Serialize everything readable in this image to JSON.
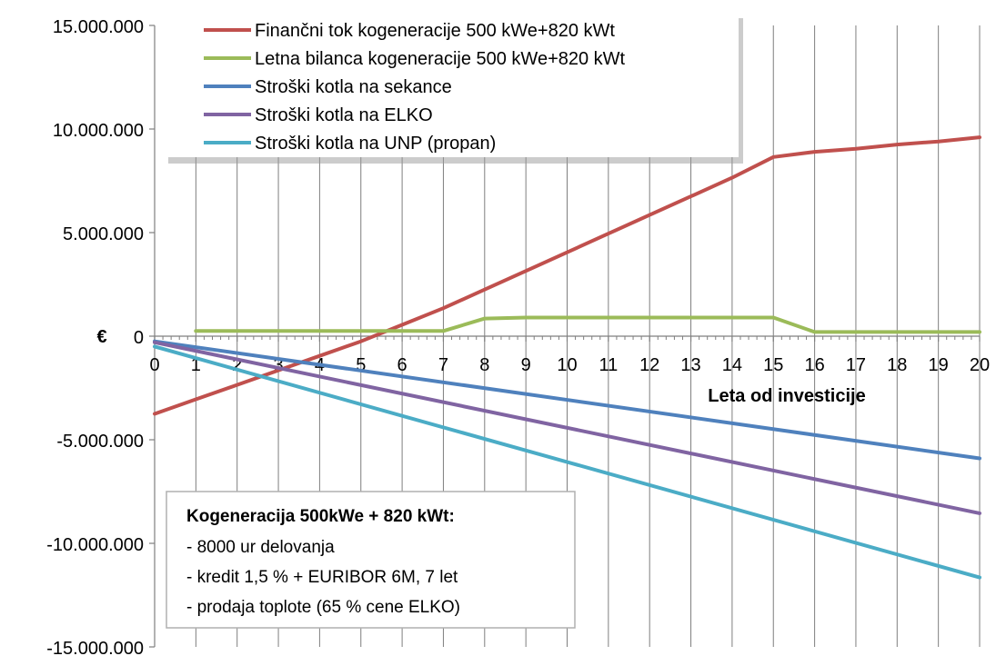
{
  "chart_data": {
    "type": "line",
    "xlabel": "Leta od investicije",
    "ylabel": "€",
    "x": [
      0,
      1,
      2,
      3,
      4,
      5,
      6,
      7,
      8,
      9,
      10,
      11,
      12,
      13,
      14,
      15,
      16,
      17,
      18,
      19,
      20
    ],
    "xlim": [
      0,
      20
    ],
    "ylim": [
      -15000000,
      15000000
    ],
    "y_ticks": [
      15000000,
      10000000,
      5000000,
      0,
      -5000000,
      -10000000,
      -15000000
    ],
    "y_tick_labels": [
      "15.000.000",
      "10.000.000",
      "5.000.000",
      "0",
      "-5.000.000",
      "-10.000.000",
      "-15.000.000"
    ],
    "x_tick_labels": [
      "0",
      "1",
      "2",
      "3",
      "4",
      "5",
      "6",
      "7",
      "8",
      "9",
      "10",
      "11",
      "12",
      "13",
      "14",
      "15",
      "16",
      "17",
      "18",
      "19",
      "20"
    ],
    "grid": "vertical",
    "legend_position": "top-left",
    "series": [
      {
        "name": "Finančni tok kogeneracije 500 kWe+820 kWt",
        "color": "#c0504d",
        "x": [
          0,
          1,
          2,
          3,
          4,
          5,
          6,
          7,
          8,
          9,
          10,
          11,
          12,
          13,
          14,
          15,
          16,
          17,
          18,
          19,
          20
        ],
        "values": [
          -3750000,
          -3050000,
          -2350000,
          -1650000,
          -950000,
          -250000,
          550000,
          1350000,
          2250000,
          3150000,
          4050000,
          4950000,
          5850000,
          6750000,
          7650000,
          8650000,
          8900000,
          9050000,
          9250000,
          9400000,
          9600000
        ]
      },
      {
        "name": "Letna bilanca kogeneracije 500 kWe+820 kWt",
        "color": "#9bbb59",
        "x": [
          1,
          2,
          3,
          4,
          5,
          6,
          7,
          8,
          9,
          10,
          11,
          12,
          13,
          14,
          15,
          16,
          17,
          18,
          19,
          20
        ],
        "values": [
          250000,
          250000,
          250000,
          250000,
          250000,
          250000,
          250000,
          850000,
          900000,
          900000,
          900000,
          900000,
          900000,
          900000,
          900000,
          200000,
          200000,
          200000,
          200000,
          200000
        ]
      },
      {
        "name": "Stroški kotla na sekance",
        "color": "#4f81bd",
        "x": [
          0,
          20
        ],
        "values": [
          -250000,
          -5900000
        ]
      },
      {
        "name": "Stroški kotla na ELKO",
        "color": "#8064a2",
        "x": [
          0,
          20
        ],
        "values": [
          -300000,
          -8550000
        ]
      },
      {
        "name": "Stroški kotla na UNP (propan)",
        "color": "#4bacc6",
        "x": [
          0,
          20
        ],
        "values": [
          -500000,
          -11650000
        ]
      }
    ],
    "annotation": {
      "title": "Kogeneracija 500kWe + 820 kWt:",
      "lines": [
        "- 8000 ur delovanja",
        "- kredit 1,5 % + EURIBOR 6M, 7 let",
        "- prodaja toplote (65 % cene ELKO)"
      ]
    }
  }
}
